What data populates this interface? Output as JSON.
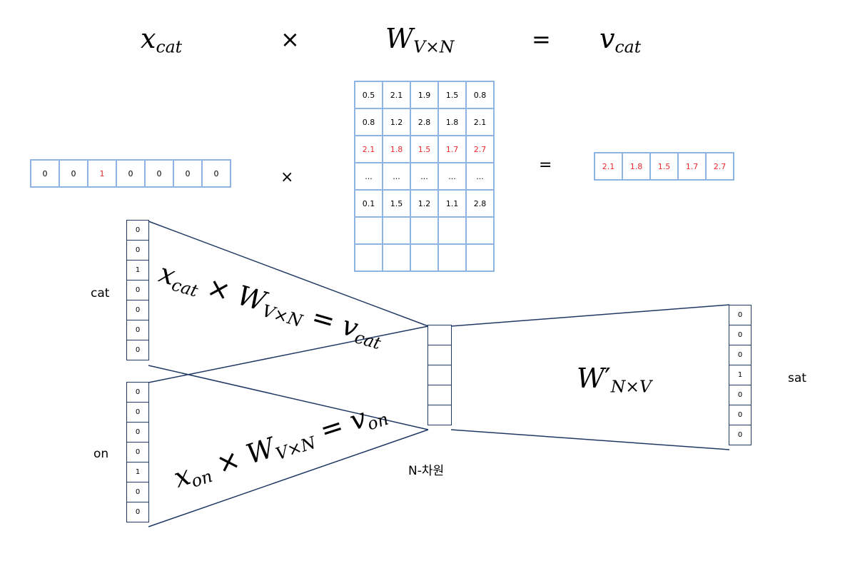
{
  "equation": {
    "x_cat_base": "x",
    "x_cat_sub": "cat",
    "times": "×",
    "w_base": "W",
    "w_sub": "V×N",
    "equals": "=",
    "v_base": "v",
    "v_sub": "cat"
  },
  "onehot_vector": [
    "0",
    "0",
    "1",
    "0",
    "0",
    "0",
    "0"
  ],
  "multiply_sign": "×",
  "weight_matrix": [
    [
      "0.5",
      "2.1",
      "1.9",
      "1.5",
      "0.8"
    ],
    [
      "0.8",
      "1.2",
      "2.8",
      "1.8",
      "2.1"
    ],
    [
      "2.1",
      "1.8",
      "1.5",
      "1.7",
      "2.7"
    ],
    [
      "...",
      "...",
      "...",
      "...",
      "..."
    ],
    [
      "0.1",
      "1.5",
      "1.2",
      "1.1",
      "2.8"
    ],
    [
      "",
      "",
      "",
      "",
      ""
    ],
    [
      "",
      "",
      "",
      "",
      ""
    ]
  ],
  "equals_sign": "=",
  "result_vector": [
    "2.1",
    "1.8",
    "1.5",
    "1.7",
    "2.7"
  ],
  "cat_label": "cat",
  "cat_vector": [
    "0",
    "0",
    "1",
    "0",
    "0",
    "0",
    "0"
  ],
  "on_label": "on",
  "on_vector": [
    "0",
    "0",
    "0",
    "0",
    "1",
    "0",
    "0"
  ],
  "hidden_layer_label": "N-차원",
  "sat_label": "sat",
  "sat_vector": [
    "0",
    "0",
    "0",
    "1",
    "0",
    "0",
    "0"
  ],
  "cat_projection": {
    "x": "x",
    "x_sub": "cat",
    "times": "×",
    "w": "W",
    "w_sub": "V×N",
    "eq": "=",
    "v": "v",
    "v_sub": "cat"
  },
  "on_projection": {
    "x": "x",
    "x_sub": "on",
    "times": "×",
    "w": "W",
    "w_sub": "V×N",
    "eq": "=",
    "v": "v",
    "v_sub": "on"
  },
  "output_weight": {
    "w": "W",
    "prime": "′",
    "sub": "N×V"
  },
  "colors": {
    "grid_border": "#8eb4e3",
    "highlight": "#e8282b",
    "network": "#1f3864"
  }
}
